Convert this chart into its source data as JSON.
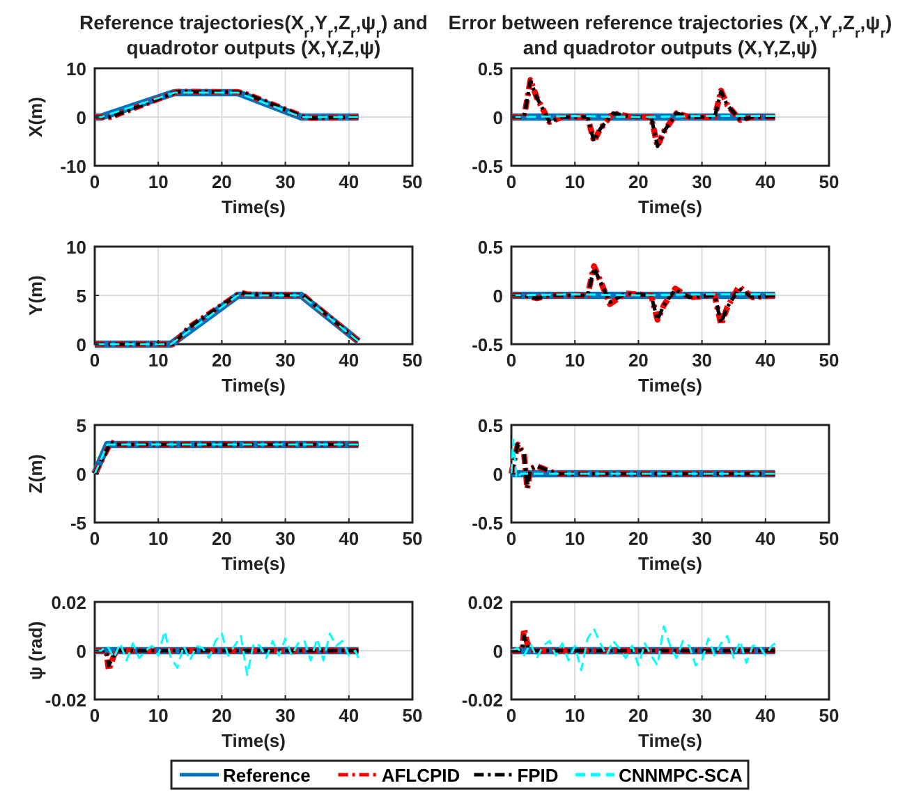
{
  "chart_data": [
    {
      "type": "line",
      "title": "Reference trajectories(X$_{r}$,Y$_{r}$,Z$_{r}$,ψ$_{r}$) and quadrotor outputs (X,Y,Z,ψ)",
      "xlabel": "Time(s)",
      "ylabel": "X(m)",
      "xlim": [
        0,
        50
      ],
      "xticks": [
        0,
        10,
        20,
        30,
        40,
        50
      ],
      "ylim": [
        -10,
        10
      ],
      "yticks": [
        -10,
        0,
        10
      ],
      "grid": true,
      "series": [
        {
          "color": "#0072bd",
          "line_style": "solid",
          "x": [
            0,
            1,
            12.5,
            22.5,
            32.5,
            41.5
          ],
          "values": [
            0,
            0,
            5,
            5,
            0,
            0
          ]
        },
        {
          "color": "#ff0000",
          "line_style": "dashdot",
          "x": [
            0,
            2.5,
            13,
            22.5,
            23.5,
            33,
            34,
            41.5
          ],
          "values": [
            0,
            0,
            5.2,
            5.1,
            4.9,
            0,
            -0.2,
            0
          ]
        },
        {
          "color": "#000000",
          "line_style": "dashdot",
          "x": [
            0,
            2.5,
            13,
            22.5,
            23.5,
            33,
            34,
            41.5
          ],
          "values": [
            0,
            0,
            5.2,
            5.1,
            4.9,
            0,
            -0.2,
            0
          ]
        },
        {
          "color": "#00ffff",
          "line_style": "dashed",
          "x": [
            0,
            1,
            12.5,
            22.5,
            32.5,
            41.5
          ],
          "values": [
            0,
            0,
            5,
            5,
            0,
            0
          ]
        }
      ]
    },
    {
      "type": "line",
      "title": "Error between reference trajectories (X$_{r}$,Y$_{r}$,Z$_{r}$,ψ$_{r}$) and quadrotor outputs (X,Y,Z,ψ)",
      "xlabel": "Time(s)",
      "xlim": [
        0,
        50
      ],
      "xticks": [
        0,
        10,
        20,
        30,
        40,
        50
      ],
      "ylim": [
        -0.5,
        0.5
      ],
      "yticks": [
        -0.5,
        0,
        0.5
      ],
      "grid": true,
      "series": [
        {
          "color": "#0072bd",
          "line_style": "solid",
          "x": [
            0,
            41.5
          ],
          "values": [
            0,
            0
          ]
        },
        {
          "color": "#ff0000",
          "line_style": "dashdot",
          "x": [
            0,
            2,
            3,
            4,
            6,
            8,
            12,
            13,
            14,
            16,
            19,
            22,
            23,
            24,
            26,
            28,
            32,
            33,
            34,
            36,
            38,
            41.5
          ],
          "values": [
            0,
            0,
            0.38,
            0.2,
            -0.05,
            0,
            0,
            -0.25,
            -0.12,
            0.04,
            0,
            0,
            -0.3,
            -0.15,
            0.04,
            0,
            0,
            0.27,
            0.12,
            -0.03,
            0,
            0
          ]
        },
        {
          "color": "#000000",
          "line_style": "dashdot",
          "x": [
            0,
            2,
            3,
            4,
            6,
            8,
            12,
            13,
            14,
            16,
            19,
            22,
            23,
            24,
            26,
            28,
            32,
            33,
            34,
            36,
            38,
            41.5
          ],
          "values": [
            0,
            0,
            0.37,
            0.2,
            -0.05,
            0,
            0,
            -0.25,
            -0.12,
            0.04,
            0,
            0,
            -0.3,
            -0.15,
            0.04,
            0,
            0,
            0.26,
            0.12,
            -0.03,
            0,
            0
          ]
        },
        {
          "color": "#00ffff",
          "line_style": "dashed",
          "x": [
            0,
            10,
            20,
            30,
            41.5
          ],
          "values": [
            0,
            0.01,
            0,
            0.01,
            0.01
          ]
        }
      ]
    },
    {
      "type": "line",
      "xlabel": "Time(s)",
      "ylabel": "Y(m)",
      "xlim": [
        0,
        50
      ],
      "xticks": [
        0,
        10,
        20,
        30,
        40,
        50
      ],
      "ylim": [
        0,
        10
      ],
      "yticks": [
        0,
        5,
        10
      ],
      "grid": true,
      "series": [
        {
          "color": "#0072bd",
          "line_style": "solid",
          "x": [
            0,
            12,
            22.5,
            32.5,
            41.5
          ],
          "values": [
            0,
            0,
            5,
            5,
            0.3
          ]
        },
        {
          "color": "#ff0000",
          "line_style": "dashdot",
          "x": [
            0,
            12.3,
            15,
            23,
            24,
            32.8,
            41.5
          ],
          "values": [
            0,
            0,
            1.8,
            5.3,
            5.1,
            5,
            0.3
          ]
        },
        {
          "color": "#000000",
          "line_style": "dashdot",
          "x": [
            0,
            12.3,
            15,
            23,
            24,
            32.8,
            41.5
          ],
          "values": [
            0,
            0,
            1.8,
            5.3,
            5.1,
            5,
            0.3
          ]
        },
        {
          "color": "#00ffff",
          "line_style": "dashed",
          "x": [
            0,
            12,
            22.5,
            32.5,
            41.5
          ],
          "values": [
            0,
            0,
            5,
            5,
            0.3
          ]
        }
      ]
    },
    {
      "type": "line",
      "xlabel": "Time(s)",
      "xlim": [
        0,
        50
      ],
      "xticks": [
        0,
        10,
        20,
        30,
        40,
        50
      ],
      "ylim": [
        -0.5,
        0.5
      ],
      "yticks": [
        -0.5,
        0,
        0.5
      ],
      "grid": true,
      "series": [
        {
          "color": "#0072bd",
          "line_style": "solid",
          "x": [
            0,
            41.5
          ],
          "values": [
            0,
            0
          ]
        },
        {
          "color": "#ff0000",
          "line_style": "dashdot",
          "x": [
            0,
            2,
            4,
            6,
            12,
            13,
            14,
            15.5,
            18,
            22,
            23,
            24,
            25.8,
            28,
            32,
            33,
            34,
            35.8,
            38,
            41.5
          ],
          "values": [
            0,
            0,
            -0.03,
            0,
            0,
            0.3,
            0.15,
            -0.09,
            0.02,
            0,
            -0.25,
            -0.1,
            0.07,
            -0.02,
            0,
            -0.3,
            -0.12,
            0.09,
            -0.02,
            0
          ]
        },
        {
          "color": "#000000",
          "line_style": "dashdot",
          "x": [
            0,
            2,
            4,
            6,
            12,
            13,
            14,
            15.5,
            18,
            22,
            23,
            24,
            25.8,
            28,
            32,
            33,
            34,
            35.8,
            38,
            41.5
          ],
          "values": [
            0,
            0,
            -0.03,
            0,
            0,
            0.28,
            0.14,
            -0.07,
            0.02,
            0,
            -0.25,
            -0.1,
            0.06,
            -0.02,
            0,
            -0.28,
            -0.12,
            0.07,
            -0.02,
            0
          ]
        },
        {
          "color": "#00ffff",
          "line_style": "dashed",
          "x": [
            0,
            10,
            20,
            30,
            41.5
          ],
          "values": [
            0,
            0.01,
            0,
            0.01,
            0.01
          ]
        }
      ]
    },
    {
      "type": "line",
      "xlabel": "Time(s)",
      "ylabel": "Z(m)",
      "xlim": [
        0,
        50
      ],
      "xticks": [
        0,
        10,
        20,
        30,
        40,
        50
      ],
      "ylim": [
        -5,
        5
      ],
      "yticks": [
        -5,
        0,
        5
      ],
      "grid": true,
      "series": [
        {
          "color": "#0072bd",
          "line_style": "solid",
          "x": [
            0,
            2,
            41.5
          ],
          "values": [
            0,
            3,
            3
          ]
        },
        {
          "color": "#ff0000",
          "line_style": "dashdot",
          "x": [
            0,
            2.5,
            3.5,
            41.5
          ],
          "values": [
            0,
            3.2,
            3,
            3
          ]
        },
        {
          "color": "#000000",
          "line_style": "dashdot",
          "x": [
            0,
            2.5,
            3.5,
            41.5
          ],
          "values": [
            0,
            3.2,
            3,
            3
          ]
        },
        {
          "color": "#00ffff",
          "line_style": "dashed",
          "x": [
            0,
            2,
            41.5
          ],
          "values": [
            0,
            3,
            3
          ]
        }
      ]
    },
    {
      "type": "line",
      "xlabel": "Time(s)",
      "xlim": [
        0,
        50
      ],
      "xticks": [
        0,
        10,
        20,
        30,
        40,
        50
      ],
      "ylim": [
        -0.5,
        0.5
      ],
      "yticks": [
        -0.5,
        0,
        0.5
      ],
      "grid": true,
      "series": [
        {
          "color": "#0072bd",
          "line_style": "solid",
          "x": [
            0,
            41.5
          ],
          "values": [
            0,
            0
          ]
        },
        {
          "color": "#ff0000",
          "line_style": "dashdot",
          "x": [
            0,
            1,
            2,
            2.5,
            3,
            4,
            7,
            41.5
          ],
          "values": [
            0,
            0.3,
            0.2,
            -0.15,
            0.05,
            0.08,
            0,
            0
          ]
        },
        {
          "color": "#000000",
          "line_style": "dashdot",
          "x": [
            0,
            1,
            2,
            2.5,
            3,
            4,
            7,
            41.5
          ],
          "values": [
            0,
            0.3,
            0.2,
            -0.15,
            0.05,
            0.08,
            0,
            0
          ]
        },
        {
          "color": "#00ffff",
          "line_style": "dashed",
          "x": [
            0,
            0.3,
            0.8,
            1.5,
            41.5
          ],
          "values": [
            0,
            0.35,
            -0.05,
            0,
            0
          ]
        }
      ]
    },
    {
      "type": "line",
      "xlabel": "Time(s)",
      "ylabel": "ψ (rad)",
      "xlim": [
        0,
        50
      ],
      "xticks": [
        0,
        10,
        20,
        30,
        40,
        50
      ],
      "ylim": [
        -0.02,
        0.02
      ],
      "yticks": [
        -0.02,
        0,
        0.02
      ],
      "grid": true,
      "series": [
        {
          "color": "#0072bd",
          "line_style": "solid",
          "x": [
            0,
            41.5
          ],
          "values": [
            0,
            0
          ]
        },
        {
          "color": "#ff0000",
          "line_style": "dashdot",
          "x": [
            0,
            1.8,
            2.2,
            3,
            3.5,
            41.5
          ],
          "values": [
            0,
            0,
            -0.008,
            -0.002,
            0,
            0
          ]
        },
        {
          "color": "#000000",
          "line_style": "dashdot",
          "x": [
            0,
            1.8,
            2.2,
            3,
            3.5,
            41.5
          ],
          "values": [
            0,
            0,
            -0.006,
            -0.002,
            0,
            0
          ]
        },
        {
          "color": "#00ffff",
          "line_style": "dashed",
          "x": [
            0,
            1,
            2,
            3,
            4,
            5,
            6,
            7,
            8,
            9,
            10,
            11,
            12,
            13,
            14,
            15,
            16,
            17,
            18,
            19,
            20,
            21,
            22,
            23,
            24,
            25,
            26,
            27,
            28,
            29,
            30,
            31,
            32,
            33,
            34,
            35,
            36,
            37,
            38,
            39,
            40,
            41,
            41.5
          ],
          "values": [
            0,
            0,
            0.002,
            -0.003,
            0.003,
            -0.004,
            0.003,
            -0.003,
            0,
            0.002,
            -0.002,
            0.008,
            -0.003,
            -0.007,
            0.002,
            -0.004,
            0.002,
            0.001,
            -0.003,
            0.004,
            0.007,
            -0.002,
            0.002,
            0.006,
            -0.01,
            0.003,
            0.002,
            -0.003,
            0.004,
            -0.002,
            0.005,
            -0.002,
            0.003,
            0.004,
            -0.004,
            0.005,
            -0.004,
            0.007,
            0.002,
            0.004,
            -0.002,
            0,
            -0.003
          ]
        }
      ]
    },
    {
      "type": "line",
      "xlabel": "Time(s)",
      "xlim": [
        0,
        50
      ],
      "xticks": [
        0,
        10,
        20,
        30,
        40,
        50
      ],
      "ylim": [
        -0.02,
        0.02
      ],
      "yticks": [
        -0.02,
        0,
        0.02
      ],
      "grid": true,
      "legend": "bottom",
      "series": [
        {
          "name": "Reference",
          "color": "#0072bd",
          "line_style": "solid",
          "x": [
            0,
            41.5
          ],
          "values": [
            0,
            0
          ]
        },
        {
          "name": "AFLCPID",
          "color": "#ff0000",
          "line_style": "dashdot",
          "x": [
            0,
            1.7,
            2,
            2.5,
            3.5,
            41.5
          ],
          "values": [
            0,
            0,
            0.009,
            0.003,
            0,
            0
          ]
        },
        {
          "name": "FPID",
          "color": "#000000",
          "line_style": "dashdot",
          "x": [
            0,
            1.7,
            2,
            2.5,
            3.5,
            41.5
          ],
          "values": [
            0,
            0,
            0.006,
            0.002,
            0,
            0
          ]
        },
        {
          "name": "CNNMPC-SCA",
          "color": "#00ffff",
          "line_style": "dashed",
          "x": [
            0,
            1,
            2,
            3,
            4,
            5,
            6,
            7,
            8,
            9,
            10,
            11,
            12,
            13,
            14,
            15,
            16,
            17,
            18,
            19,
            20,
            21,
            22,
            23,
            24,
            25,
            26,
            27,
            28,
            29,
            30,
            31,
            32,
            33,
            34,
            35,
            36,
            37,
            38,
            39,
            40,
            41,
            41.5
          ],
          "values": [
            0,
            0.001,
            -0.002,
            0.003,
            -0.003,
            0.002,
            0.004,
            -0.002,
            0.003,
            -0.004,
            0.002,
            -0.008,
            0.005,
            0.009,
            0.003,
            -0.002,
            0.004,
            0.001,
            -0.003,
            0.002,
            -0.006,
            0.003,
            -0.002,
            -0.006,
            0.01,
            0.002,
            -0.003,
            0.004,
            0.002,
            -0.006,
            -0.004,
            0.005,
            -0.002,
            0.003,
            0.006,
            -0.003,
            0.004,
            -0.005,
            0.002,
            0.002,
            -0.002,
            0.002,
            0.003
          ]
        }
      ]
    }
  ]
}
